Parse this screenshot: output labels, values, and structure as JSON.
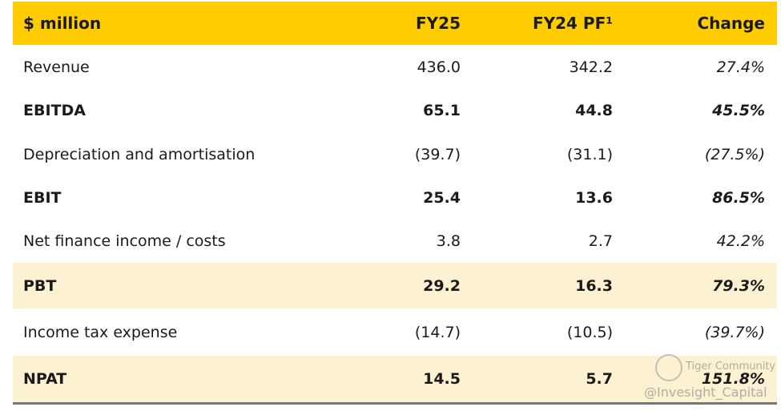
{
  "header": {
    "label": "$ million",
    "col1": "FY25",
    "col2": "FY24 PF¹",
    "col3": "Change"
  },
  "rows": [
    {
      "label": "Revenue",
      "fy25": "436.0",
      "fy24": "342.2",
      "change": "27.4%"
    },
    {
      "label": "EBITDA",
      "fy25": "65.1",
      "fy24": "44.8",
      "change": "45.5%"
    },
    {
      "label": "Depreciation and amortisation",
      "fy25": "(39.7)",
      "fy24": "(31.1)",
      "change": "(27.5%)"
    },
    {
      "label": "EBIT",
      "fy25": "25.4",
      "fy24": "13.6",
      "change": "86.5%"
    },
    {
      "label": "Net finance income / costs",
      "fy25": "3.8",
      "fy24": "2.7",
      "change": "42.2%"
    },
    {
      "label": "PBT",
      "fy25": "29.2",
      "fy24": "16.3",
      "change": "79.3%"
    },
    {
      "label": "Income tax expense",
      "fy25": "(14.7)",
      "fy24": "(10.5)",
      "change": "(39.7%)"
    },
    {
      "label": "NPAT",
      "fy25": "14.5",
      "fy24": "5.7",
      "change": "151.8%"
    }
  ],
  "watermark": {
    "brand": "Tiger Community",
    "handle": "@Invesight_Capital"
  },
  "colors": {
    "header": "#ffcc00",
    "highlight": "#fcf2d2"
  }
}
